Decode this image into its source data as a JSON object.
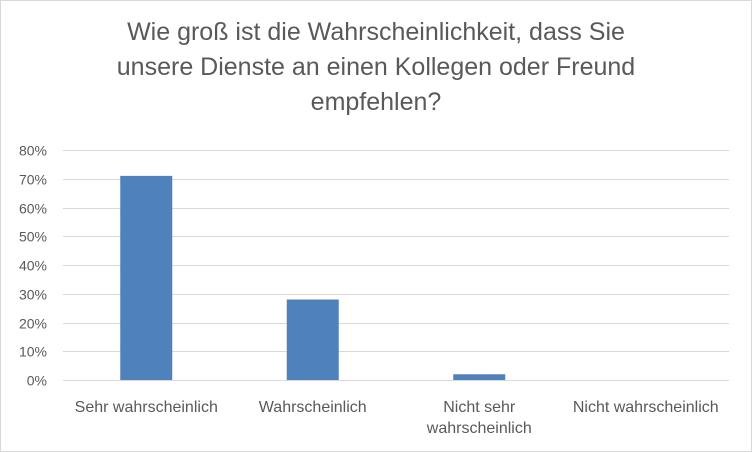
{
  "chart_data": {
    "type": "bar",
    "title_lines": [
      "Wie groß ist die Wahrscheinlichkeit, dass Sie",
      "unsere Dienste an einen Kollegen oder Freund",
      "empfehlen?"
    ],
    "categories": [
      [
        "Sehr wahrscheinlich"
      ],
      [
        "Wahrscheinlich"
      ],
      [
        "Nicht sehr",
        "wahrscheinlich"
      ],
      [
        "Nicht wahrscheinlich"
      ]
    ],
    "values": [
      71,
      28,
      2,
      0
    ],
    "ylim": [
      0,
      80
    ],
    "yticks": [
      0,
      10,
      20,
      30,
      40,
      50,
      60,
      70,
      80
    ],
    "ytick_suffix": "%",
    "grid": true,
    "legend": "none",
    "bar_color": "#4f81bd"
  }
}
